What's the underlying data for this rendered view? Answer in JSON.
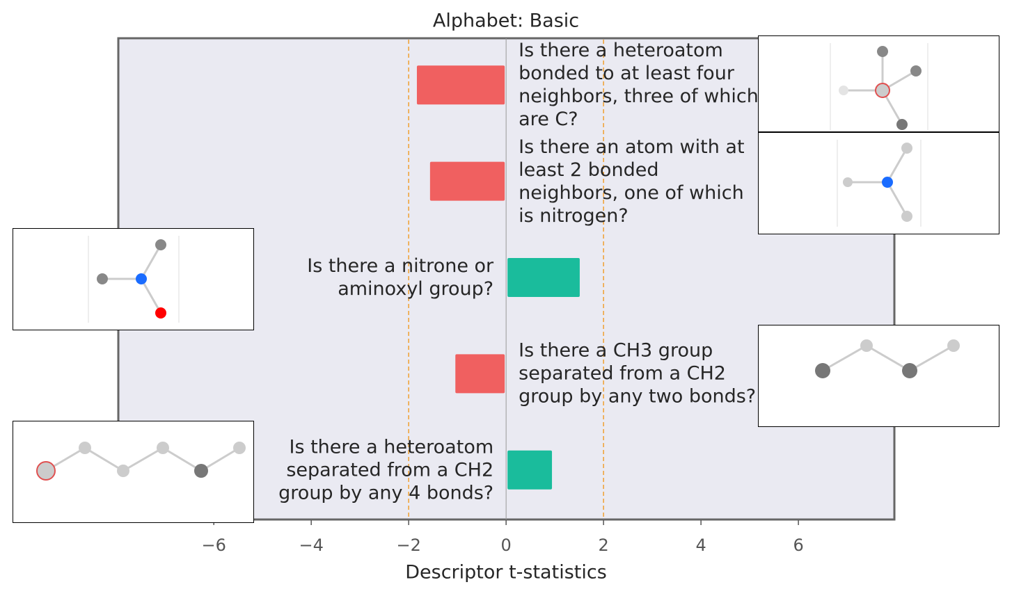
{
  "chart_data": {
    "type": "barh",
    "title": "Alphabet: Basic",
    "x_label": "Descriptor t-statistics",
    "categories": [
      "Is there a heteroatom bonded to at least four neighbors, three of which are C?",
      "Is there an atom with at least 2 bonded neighbors, one of which is nitrogen?",
      "Is there a nitrone or aminoxyl group?",
      "Is there a CH3 group separated from a CH2 group by any two bonds?",
      "Is there a heteroatom separated from a CH2 group by any 4 bonds?"
    ],
    "values": [
      -1.86,
      -1.59,
      1.54,
      -1.07,
      0.97
    ],
    "negative_color": "#f06060",
    "positive_color": "#1abc9c",
    "xlim": [
      -7.96,
      7.97
    ],
    "xticks": [
      {
        "value": -6,
        "label": "−6"
      },
      {
        "value": -4,
        "label": "−4"
      },
      {
        "value": -2,
        "label": "−2"
      },
      0,
      2,
      4,
      6
    ],
    "thresholds": [
      -2,
      2
    ],
    "threshold_color": "#f0a030"
  }
}
